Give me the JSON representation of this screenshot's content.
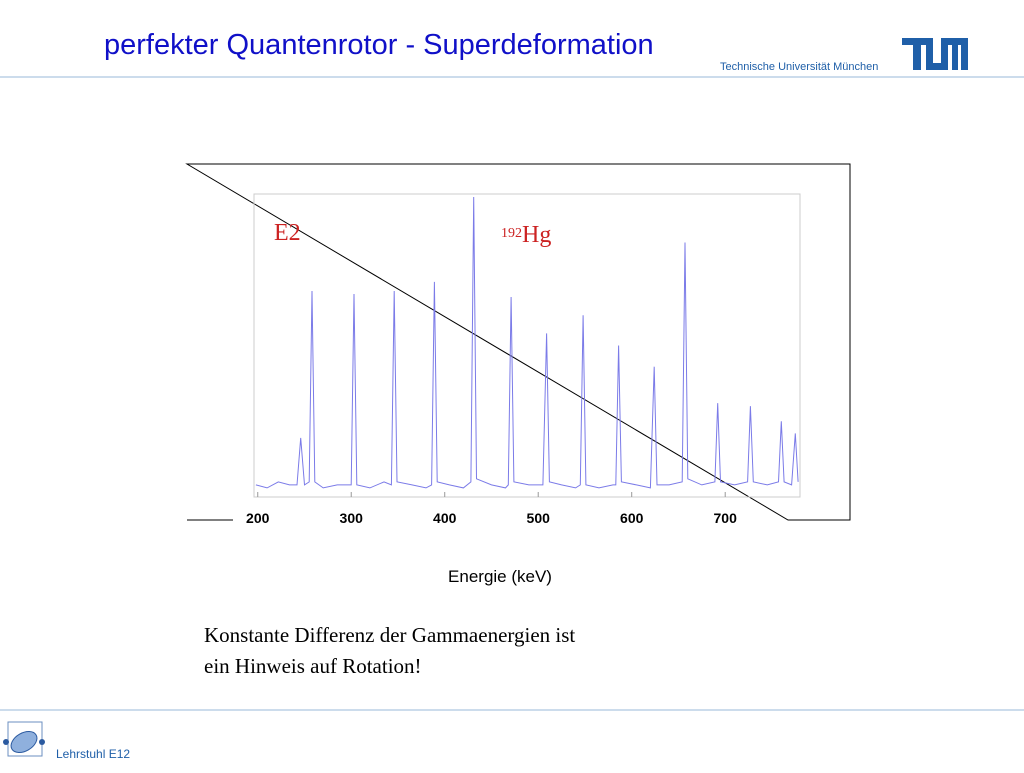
{
  "header": {
    "title": "perfekter Quantenrotor - Superdeformation",
    "university": "Technische Universität München"
  },
  "chart_data": {
    "type": "line",
    "color": "#7b7be8",
    "annotations": {
      "multipolarity": "E2",
      "isotope_mass": "192",
      "isotope_symbol": "Hg"
    },
    "x_label": "Energie (keV)",
    "xlim": [
      196,
      780
    ],
    "xticks": [
      200,
      300,
      400,
      500,
      600,
      700
    ],
    "ylim": [
      0,
      100
    ],
    "x": [
      198,
      210,
      222,
      234,
      242,
      246,
      250,
      255,
      258,
      261,
      270,
      285,
      300,
      303,
      306,
      320,
      335,
      343,
      346,
      349,
      365,
      380,
      386,
      389,
      392,
      405,
      420,
      428,
      431,
      434,
      450,
      465,
      468,
      471,
      474,
      490,
      505,
      509,
      512,
      525,
      540,
      545,
      548,
      551,
      565,
      580,
      583,
      586,
      589,
      605,
      620,
      624,
      627,
      640,
      654,
      657,
      660,
      675,
      689,
      692,
      695,
      710,
      724,
      727,
      730,
      745,
      757,
      760,
      763,
      771,
      775,
      778
    ],
    "values": [
      4,
      3,
      5,
      4,
      4,
      19.5,
      4,
      5,
      68,
      5,
      3,
      4,
      4,
      67,
      4,
      3,
      5,
      4,
      68,
      5,
      4,
      3,
      4,
      71,
      5,
      4,
      3,
      5,
      99,
      6,
      4,
      3,
      4,
      66,
      5,
      4,
      4,
      54,
      5,
      4,
      3,
      4,
      60,
      4,
      3,
      4,
      4,
      50,
      5,
      4,
      3,
      43,
      4,
      4,
      5,
      84,
      6,
      4,
      5,
      31,
      5,
      4,
      5,
      30,
      5,
      4,
      5,
      25,
      5,
      4,
      21,
      5
    ]
  },
  "body": {
    "lines": [
      "Konstante Differenz der Gammaenergien ist",
      "ein Hinweis auf Rotation!"
    ]
  },
  "footer": {
    "chair": "Lehrstuhl E12"
  }
}
